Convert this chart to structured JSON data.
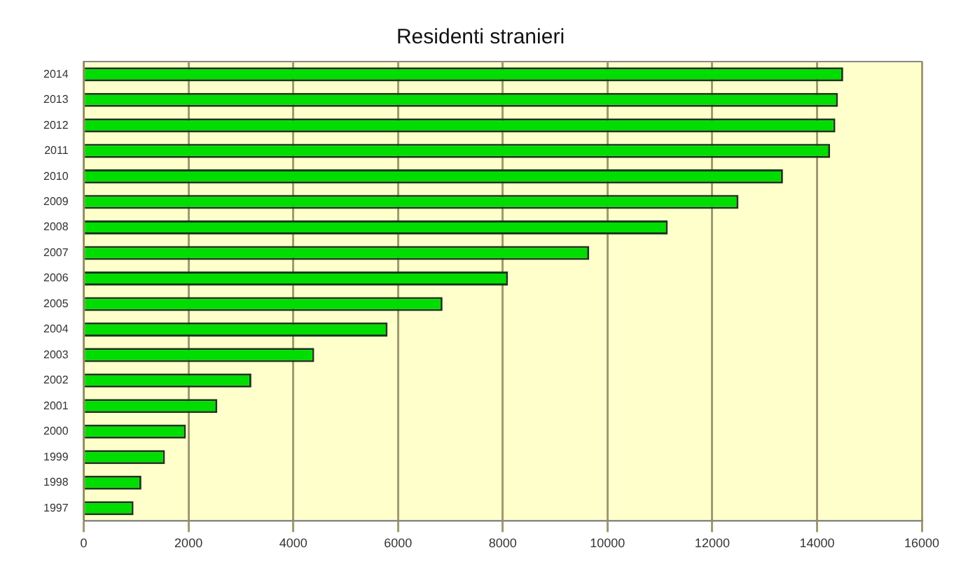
{
  "chart_data": {
    "type": "bar",
    "orientation": "horizontal",
    "title": "Residenti stranieri",
    "categories": [
      "2014",
      "2013",
      "2012",
      "2011",
      "2010",
      "2009",
      "2008",
      "2007",
      "2006",
      "2005",
      "2004",
      "2003",
      "2002",
      "2001",
      "2000",
      "1999",
      "1998",
      "1997"
    ],
    "values": [
      14500,
      14400,
      14350,
      14250,
      13350,
      12500,
      11150,
      9650,
      8100,
      6850,
      5800,
      4400,
      3200,
      2550,
      1950,
      1550,
      1100,
      950
    ],
    "color": "#00dd00",
    "xlim": [
      0,
      16000
    ],
    "xticks": [
      0,
      2000,
      4000,
      6000,
      8000,
      10000,
      12000,
      14000,
      16000
    ],
    "grid": "x"
  }
}
